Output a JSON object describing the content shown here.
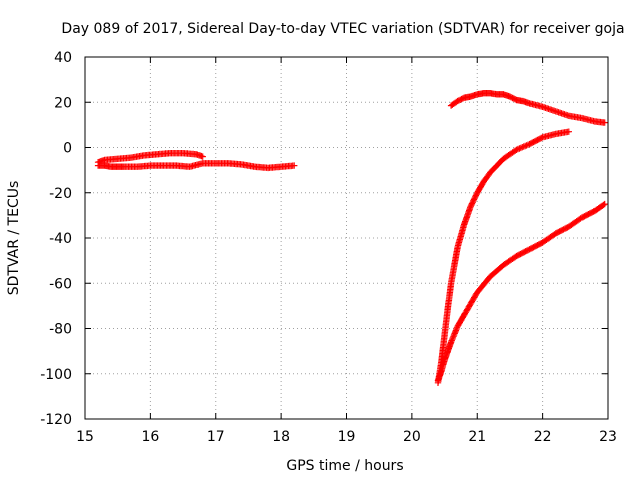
{
  "chart_data": {
    "type": "scatter",
    "title": "Day 089 of 2017, Sidereal Day-to-day VTEC variation (SDTVAR) for receiver goja",
    "xlabel": "GPS time / hours",
    "ylabel": "SDTVAR / TECUs",
    "xlim": [
      15,
      23
    ],
    "ylim": [
      -120,
      40
    ],
    "xticks": [
      "15",
      "16",
      "17",
      "18",
      "19",
      "20",
      "21",
      "22",
      "23"
    ],
    "yticks": [
      "40",
      "20",
      "0",
      "-20",
      "-40",
      "-60",
      "-80",
      "-100",
      "-120"
    ],
    "grid": true,
    "legend": "none",
    "marker": "plus",
    "color": "#ff0000",
    "series": [
      {
        "x": [
          15.2,
          15.3,
          15.4,
          15.5,
          15.6,
          15.8,
          16.0,
          16.2,
          16.4,
          16.6,
          16.8,
          17.0,
          17.2,
          17.4,
          17.6,
          17.8,
          18.0,
          18.2
        ],
        "y": [
          -8,
          -8,
          -8.5,
          -8.5,
          -8.5,
          -8.5,
          -8,
          -8,
          -8,
          -8.5,
          -7,
          -7,
          -7,
          -7.5,
          -8.5,
          -9,
          -8.5,
          -8
        ]
      },
      {
        "x": [
          15.2,
          15.3,
          15.5,
          15.7,
          15.9,
          16.1,
          16.3,
          16.5,
          16.7,
          16.8
        ],
        "y": [
          -6.5,
          -5.5,
          -5,
          -4.5,
          -3.5,
          -3,
          -2.5,
          -2.5,
          -3,
          -4
        ]
      },
      {
        "x": [
          20.6,
          20.7,
          20.8,
          20.9,
          21.0,
          21.1,
          21.2,
          21.3,
          21.4,
          21.5,
          21.6,
          21.7,
          21.8,
          22.0,
          22.2,
          22.4,
          22.6,
          22.8,
          22.95
        ],
        "y": [
          18.5,
          20.5,
          22,
          22.5,
          23.5,
          24,
          24,
          23.5,
          23.5,
          22.5,
          21,
          20.5,
          19.5,
          18,
          16,
          14,
          13,
          11.5,
          11
        ]
      },
      {
        "x": [
          20.4,
          20.45,
          20.5,
          20.55,
          20.6,
          20.65,
          20.7,
          20.8,
          20.9,
          21.0,
          21.1,
          21.2,
          21.3,
          21.4,
          21.5,
          21.6,
          21.8,
          22.0,
          22.2,
          22.4
        ],
        "y": [
          -104,
          -95,
          -83,
          -71,
          -60,
          -52,
          -44,
          -34,
          -26,
          -20,
          -15,
          -11,
          -8,
          -5,
          -3,
          -1,
          1.5,
          4.5,
          6,
          7
        ]
      },
      {
        "x": [
          20.4,
          20.45,
          20.5,
          20.55,
          20.6,
          20.7,
          20.8,
          21.0,
          21.2,
          21.4,
          21.6,
          21.8,
          22.0,
          22.2,
          22.4,
          22.6,
          22.8,
          22.95
        ],
        "y": [
          -103,
          -99,
          -94,
          -90,
          -86,
          -79,
          -74,
          -64,
          -57,
          -52,
          -48,
          -45,
          -42,
          -38,
          -35,
          -31,
          -28,
          -25
        ]
      }
    ]
  }
}
